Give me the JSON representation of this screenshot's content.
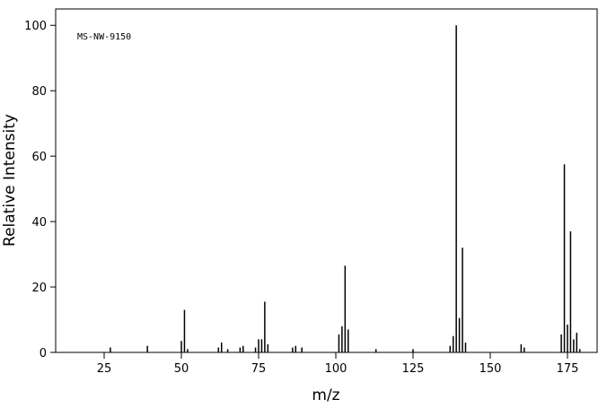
{
  "chart_data": {
    "type": "stem",
    "annotation": "MS-NW-9150",
    "x_label": "m/z",
    "y_label": "Relative Intensity",
    "color": "#000000",
    "x": [
      27,
      39,
      50,
      51,
      52,
      62,
      63,
      65,
      69,
      70,
      74,
      75,
      76,
      77,
      78,
      86,
      87,
      89,
      101,
      102,
      103,
      104,
      113,
      125,
      137,
      138,
      139,
      140,
      141,
      142,
      160,
      161,
      173,
      174,
      175,
      176,
      177,
      178,
      179
    ],
    "values": [
      1.5,
      2,
      3.5,
      13,
      1,
      1.5,
      3,
      1,
      1.5,
      2,
      1.5,
      4,
      4,
      15.5,
      2.5,
      1.5,
      2,
      1.5,
      5.5,
      8,
      26.5,
      7,
      1,
      1,
      2,
      5,
      100,
      10.5,
      32,
      3,
      2.5,
      1.5,
      5.5,
      57.5,
      8.5,
      37,
      4,
      6,
      1
    ],
    "xlim": [
      9.3,
      184.6
    ],
    "ylim": [
      0,
      105
    ],
    "xticks": [
      25,
      50,
      75,
      100,
      125,
      150,
      175
    ],
    "yticks": [
      0,
      20,
      40,
      60,
      80,
      100
    ]
  }
}
